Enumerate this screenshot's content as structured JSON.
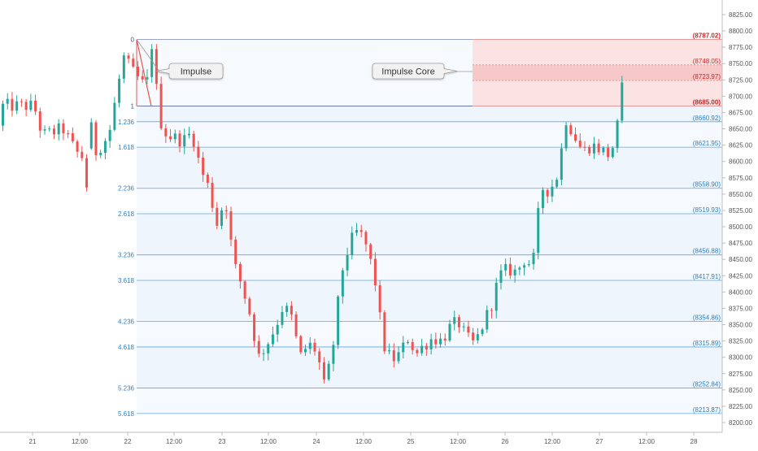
{
  "chart_data": {
    "type": "candlestick",
    "title": "",
    "xlabel": "",
    "ylabel": "",
    "ylim": [
      8190,
      8840
    ],
    "x_ticks": [
      "21",
      "12:00",
      "22",
      "12:00",
      "23",
      "12:00",
      "24",
      "12:00",
      "25",
      "12:00",
      "26",
      "12:00",
      "27",
      "12:00",
      "28"
    ],
    "y_ticks": [
      "8825.00",
      "8800.00",
      "8775.00",
      "8750.00",
      "8725.00",
      "8700.00",
      "8675.00",
      "8650.00",
      "8625.00",
      "8600.00",
      "8575.00",
      "8550.00",
      "8525.00",
      "8500.00",
      "8475.00",
      "8450.00",
      "8425.00",
      "8400.00",
      "8375.00",
      "8350.00",
      "8325.00",
      "8300.00",
      "8275.00",
      "8250.00",
      "8225.00",
      "8200.00"
    ],
    "grid": false,
    "colors": {
      "up": "#26a69a",
      "down": "#ef5350",
      "fib_line": "#5ea9dd",
      "fib_label": "#2f7fc1",
      "core_zone": "#f5b5b5",
      "core_label": "#c62828",
      "axis_text": "#555555"
    },
    "fib_levels": [
      {
        "ratio": "0",
        "price": 8787.02,
        "label": "(8787.02)"
      },
      {
        "ratio": "1",
        "price": 8685.0,
        "label": "(8685.00)"
      },
      {
        "ratio": "1.236",
        "price": 8660.92,
        "label": "(8660.92)"
      },
      {
        "ratio": "1.618",
        "price": 8621.95,
        "label": "(8621.95)"
      },
      {
        "ratio": "2.236",
        "price": 8558.9,
        "label": "(8558.90)"
      },
      {
        "ratio": "2.618",
        "price": 8519.93,
        "label": "(8519.93)"
      },
      {
        "ratio": "3.236",
        "price": 8456.88,
        "label": "(8456.88)"
      },
      {
        "ratio": "3.618",
        "price": 8417.91,
        "label": "(8417.91)"
      },
      {
        "ratio": "4.236",
        "price": 8354.86,
        "label": "(8354.86)"
      },
      {
        "ratio": "4.618",
        "price": 8315.89,
        "label": "(8315.89)"
      },
      {
        "ratio": "5.236",
        "price": 8252.84,
        "label": "(8252.84)"
      },
      {
        "ratio": "5.618",
        "price": 8213.87,
        "label": "(8213.87)"
      }
    ],
    "core_levels": [
      {
        "price": 8787.02,
        "label": "(8787.02)"
      },
      {
        "price": 8748.05,
        "label": "(8748.05)"
      },
      {
        "price": 8723.97,
        "label": "(8723.97)"
      },
      {
        "price": 8685.0,
        "label": "(8685.00)"
      }
    ],
    "annotations": [
      {
        "text": "Impulse"
      },
      {
        "text": "Impulse Core"
      }
    ],
    "anchors": [
      {
        "x": 8.0,
        "close": 8685
      },
      {
        "x": 10.0,
        "close": 8640
      },
      {
        "x": 15.0,
        "close": 8650
      },
      {
        "x": 18.0,
        "close": 8615
      },
      {
        "x": 21.0,
        "close": 8600
      },
      {
        "x": 26.0,
        "close": 8640
      },
      {
        "x": 29.5,
        "close": 8760
      },
      {
        "x": 32.0,
        "close": 8735
      },
      {
        "x": 35.0,
        "close": 8712
      },
      {
        "x": 36.5,
        "close": 8787
      },
      {
        "x": 38.0,
        "close": 8668
      },
      {
        "x": 40.0,
        "close": 8640
      },
      {
        "x": 44.0,
        "close": 8632
      },
      {
        "x": 46.0,
        "close": 8645
      },
      {
        "x": 48.0,
        "close": 8590
      },
      {
        "x": 50.0,
        "close": 8560
      },
      {
        "x": 52.0,
        "close": 8505
      },
      {
        "x": 54.0,
        "close": 8545
      },
      {
        "x": 56.0,
        "close": 8445
      },
      {
        "x": 58.0,
        "close": 8410
      },
      {
        "x": 60.0,
        "close": 8365
      },
      {
        "x": 62.0,
        "close": 8300
      },
      {
        "x": 64.0,
        "close": 8320
      },
      {
        "x": 66.0,
        "close": 8345
      },
      {
        "x": 68.0,
        "close": 8380
      },
      {
        "x": 70.0,
        "close": 8360
      },
      {
        "x": 72.0,
        "close": 8300
      },
      {
        "x": 74.0,
        "close": 8320
      },
      {
        "x": 76.0,
        "close": 8310
      },
      {
        "x": 78.0,
        "close": 8250
      },
      {
        "x": 80.0,
        "close": 8320
      },
      {
        "x": 82.0,
        "close": 8430
      },
      {
        "x": 84.0,
        "close": 8475
      },
      {
        "x": 86.0,
        "close": 8495
      },
      {
        "x": 88.0,
        "close": 8470
      },
      {
        "x": 90.0,
        "close": 8420
      },
      {
        "x": 92.0,
        "close": 8320
      },
      {
        "x": 94.0,
        "close": 8295
      },
      {
        "x": 96.0,
        "close": 8305
      },
      {
        "x": 98.0,
        "close": 8330
      },
      {
        "x": 100.0,
        "close": 8305
      },
      {
        "x": 102.0,
        "close": 8320
      },
      {
        "x": 104.0,
        "close": 8330
      },
      {
        "x": 106.0,
        "close": 8325
      },
      {
        "x": 108.0,
        "close": 8345
      },
      {
        "x": 110.0,
        "close": 8355
      },
      {
        "x": 112.0,
        "close": 8330
      },
      {
        "x": 114.0,
        "close": 8320
      },
      {
        "x": 116.0,
        "close": 8350
      },
      {
        "x": 118.0,
        "close": 8380
      },
      {
        "x": 120.0,
        "close": 8425
      },
      {
        "x": 122.0,
        "close": 8435
      },
      {
        "x": 124.0,
        "close": 8430
      },
      {
        "x": 126.0,
        "close": 8450
      },
      {
        "x": 128.0,
        "close": 8440
      },
      {
        "x": 130.0,
        "close": 8560
      },
      {
        "x": 132.0,
        "close": 8555
      },
      {
        "x": 134.0,
        "close": 8580
      },
      {
        "x": 136.0,
        "close": 8665
      },
      {
        "x": 138.0,
        "close": 8640
      },
      {
        "x": 140.0,
        "close": 8615
      },
      {
        "x": 142.0,
        "close": 8625
      },
      {
        "x": 144.0,
        "close": 8620
      },
      {
        "x": 146.0,
        "close": 8610
      },
      {
        "x": 148.0,
        "close": 8630
      },
      {
        "x": 149.0,
        "close": 8700
      },
      {
        "x": 150.0,
        "close": 8725
      }
    ]
  }
}
